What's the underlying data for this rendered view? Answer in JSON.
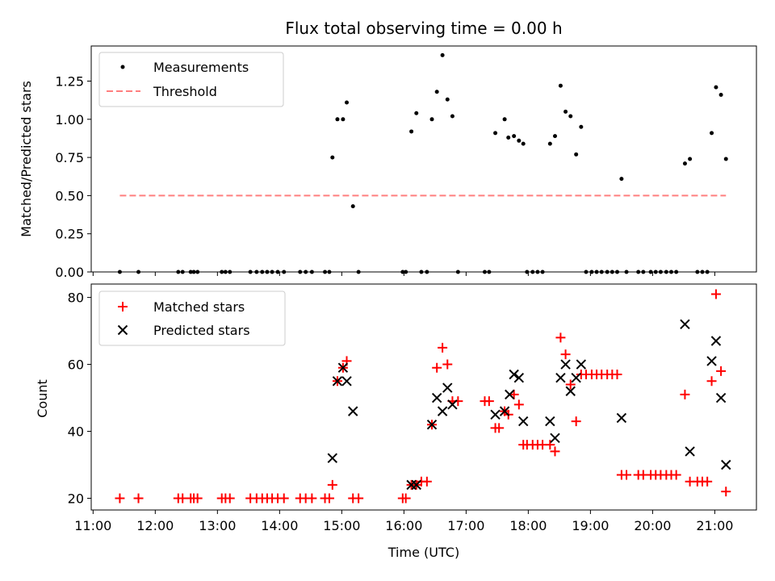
{
  "chart_data": [
    {
      "type": "scatter",
      "title": "Flux total observing time = 0.00 h",
      "xlabel": "",
      "ylabel": "Matched/Predicted stars",
      "xlim": [
        10.97,
        21.67
      ],
      "ylim": [
        0,
        1.48
      ],
      "yticks": [
        0,
        0.25,
        0.5,
        0.75,
        1.0,
        1.25
      ],
      "ytick_labels": [
        "0.00",
        "0.25",
        "0.50",
        "0.75",
        "1.00",
        "1.25"
      ],
      "legend_position": "top-left",
      "colors": {
        "measurements": "#000000",
        "threshold": "#ff7f7f"
      },
      "series": [
        {
          "name": "Measurements",
          "marker": "dot",
          "points": [
            [
              11.43,
              0
            ],
            [
              11.73,
              0
            ],
            [
              12.37,
              0
            ],
            [
              12.44,
              0
            ],
            [
              12.57,
              0
            ],
            [
              12.62,
              0
            ],
            [
              12.68,
              0
            ],
            [
              13.07,
              0
            ],
            [
              13.13,
              0
            ],
            [
              13.2,
              0
            ],
            [
              13.53,
              0
            ],
            [
              13.63,
              0
            ],
            [
              13.72,
              0
            ],
            [
              13.8,
              0
            ],
            [
              13.88,
              0
            ],
            [
              13.97,
              0
            ],
            [
              14.07,
              0
            ],
            [
              14.33,
              0
            ],
            [
              14.42,
              0
            ],
            [
              14.52,
              0
            ],
            [
              14.73,
              0
            ],
            [
              14.8,
              0
            ],
            [
              14.85,
              0.75
            ],
            [
              14.93,
              1.0
            ],
            [
              15.02,
              1.0
            ],
            [
              15.08,
              1.11
            ],
            [
              15.18,
              0.43
            ],
            [
              15.27,
              0
            ],
            [
              15.98,
              0
            ],
            [
              16.03,
              0
            ],
            [
              16.12,
              0.92
            ],
            [
              16.2,
              1.04
            ],
            [
              16.28,
              0
            ],
            [
              16.37,
              0
            ],
            [
              16.45,
              1.0
            ],
            [
              16.53,
              1.18
            ],
            [
              16.62,
              1.42
            ],
            [
              16.7,
              1.13
            ],
            [
              16.78,
              1.02
            ],
            [
              16.87,
              0
            ],
            [
              17.3,
              0
            ],
            [
              17.37,
              0
            ],
            [
              17.47,
              0.91
            ],
            [
              17.62,
              1.0
            ],
            [
              17.68,
              0.88
            ],
            [
              17.77,
              0.89
            ],
            [
              17.85,
              0.86
            ],
            [
              17.92,
              0.84
            ],
            [
              17.98,
              0
            ],
            [
              18.07,
              0
            ],
            [
              18.15,
              0
            ],
            [
              18.23,
              0
            ],
            [
              18.35,
              0.84
            ],
            [
              18.43,
              0.89
            ],
            [
              18.52,
              1.22
            ],
            [
              18.6,
              1.05
            ],
            [
              18.68,
              1.02
            ],
            [
              18.77,
              0.77
            ],
            [
              18.85,
              0.95
            ],
            [
              18.93,
              0
            ],
            [
              19.02,
              0
            ],
            [
              19.1,
              0
            ],
            [
              19.18,
              0
            ],
            [
              19.27,
              0
            ],
            [
              19.35,
              0
            ],
            [
              19.43,
              0
            ],
            [
              19.5,
              0.61
            ],
            [
              19.58,
              0
            ],
            [
              19.77,
              0
            ],
            [
              19.85,
              0
            ],
            [
              19.97,
              0
            ],
            [
              20.05,
              0
            ],
            [
              20.13,
              0
            ],
            [
              20.22,
              0
            ],
            [
              20.3,
              0
            ],
            [
              20.38,
              0
            ],
            [
              20.52,
              0.71
            ],
            [
              20.6,
              0.74
            ],
            [
              20.72,
              0
            ],
            [
              20.8,
              0
            ],
            [
              20.88,
              0
            ],
            [
              20.95,
              0.91
            ],
            [
              21.02,
              1.21
            ],
            [
              21.1,
              1.16
            ],
            [
              21.18,
              0.74
            ]
          ]
        },
        {
          "name": "Threshold",
          "style": "dashed",
          "x": [
            11.43,
            21.18
          ],
          "y": [
            0.5,
            0.5
          ]
        }
      ]
    },
    {
      "type": "scatter",
      "title": "",
      "xlabel": "Time (UTC)",
      "ylabel": "Count",
      "xlim": [
        10.97,
        21.67
      ],
      "ylim": [
        16.5,
        84
      ],
      "yticks": [
        20,
        40,
        60,
        80
      ],
      "ytick_labels": [
        "20",
        "40",
        "60",
        "80"
      ],
      "xticks": [
        11,
        12,
        13,
        14,
        15,
        16,
        17,
        18,
        19,
        20,
        21
      ],
      "xtick_labels": [
        "11:00",
        "12:00",
        "13:00",
        "14:00",
        "15:00",
        "16:00",
        "17:00",
        "18:00",
        "19:00",
        "20:00",
        "21:00"
      ],
      "legend_position": "top-left",
      "colors": {
        "matched": "#ff0000",
        "predicted": "#000000"
      },
      "series": [
        {
          "name": "Matched stars",
          "marker": "plus",
          "points": [
            [
              11.43,
              20
            ],
            [
              11.73,
              20
            ],
            [
              12.37,
              20
            ],
            [
              12.44,
              20
            ],
            [
              12.57,
              20
            ],
            [
              12.62,
              20
            ],
            [
              12.68,
              20
            ],
            [
              13.07,
              20
            ],
            [
              13.13,
              20
            ],
            [
              13.2,
              20
            ],
            [
              13.53,
              20
            ],
            [
              13.63,
              20
            ],
            [
              13.72,
              20
            ],
            [
              13.8,
              20
            ],
            [
              13.88,
              20
            ],
            [
              13.97,
              20
            ],
            [
              14.07,
              20
            ],
            [
              14.33,
              20
            ],
            [
              14.42,
              20
            ],
            [
              14.52,
              20
            ],
            [
              14.73,
              20
            ],
            [
              14.8,
              20
            ],
            [
              14.85,
              24
            ],
            [
              14.93,
              55
            ],
            [
              15.02,
              59
            ],
            [
              15.08,
              61
            ],
            [
              15.18,
              20
            ],
            [
              15.27,
              20
            ],
            [
              15.98,
              20
            ],
            [
              16.03,
              20
            ],
            [
              16.12,
              24
            ],
            [
              16.2,
              24
            ],
            [
              16.28,
              25
            ],
            [
              16.37,
              25
            ],
            [
              16.45,
              42
            ],
            [
              16.53,
              59
            ],
            [
              16.62,
              65
            ],
            [
              16.7,
              60
            ],
            [
              16.78,
              49
            ],
            [
              16.87,
              49
            ],
            [
              17.3,
              49
            ],
            [
              17.37,
              49
            ],
            [
              17.47,
              41
            ],
            [
              17.53,
              41
            ],
            [
              17.62,
              46
            ],
            [
              17.68,
              45
            ],
            [
              17.77,
              51
            ],
            [
              17.85,
              48
            ],
            [
              17.92,
              36
            ],
            [
              17.98,
              36
            ],
            [
              18.07,
              36
            ],
            [
              18.15,
              36
            ],
            [
              18.23,
              36
            ],
            [
              18.35,
              36
            ],
            [
              18.43,
              34
            ],
            [
              18.52,
              68
            ],
            [
              18.6,
              63
            ],
            [
              18.68,
              54
            ],
            [
              18.77,
              43
            ],
            [
              18.85,
              57
            ],
            [
              18.93,
              57
            ],
            [
              19.02,
              57
            ],
            [
              19.1,
              57
            ],
            [
              19.18,
              57
            ],
            [
              19.27,
              57
            ],
            [
              19.35,
              57
            ],
            [
              19.43,
              57
            ],
            [
              19.5,
              27
            ],
            [
              19.58,
              27
            ],
            [
              19.77,
              27
            ],
            [
              19.85,
              27
            ],
            [
              19.97,
              27
            ],
            [
              20.05,
              27
            ],
            [
              20.13,
              27
            ],
            [
              20.22,
              27
            ],
            [
              20.3,
              27
            ],
            [
              20.38,
              27
            ],
            [
              20.52,
              51
            ],
            [
              20.6,
              25
            ],
            [
              20.72,
              25
            ],
            [
              20.8,
              25
            ],
            [
              20.88,
              25
            ],
            [
              20.95,
              55
            ],
            [
              21.02,
              81
            ],
            [
              21.1,
              58
            ],
            [
              21.18,
              22
            ]
          ]
        },
        {
          "name": "Predicted stars",
          "marker": "x",
          "points": [
            [
              14.85,
              32
            ],
            [
              14.93,
              55
            ],
            [
              15.02,
              59
            ],
            [
              15.08,
              55
            ],
            [
              15.18,
              46
            ],
            [
              16.12,
              24
            ],
            [
              16.2,
              24
            ],
            [
              16.45,
              42
            ],
            [
              16.53,
              50
            ],
            [
              16.62,
              46
            ],
            [
              16.7,
              53
            ],
            [
              16.78,
              48
            ],
            [
              17.47,
              45
            ],
            [
              17.62,
              46
            ],
            [
              17.7,
              51
            ],
            [
              17.77,
              57
            ],
            [
              17.85,
              56
            ],
            [
              17.92,
              43
            ],
            [
              18.35,
              43
            ],
            [
              18.43,
              38
            ],
            [
              18.52,
              56
            ],
            [
              18.6,
              60
            ],
            [
              18.68,
              52
            ],
            [
              18.77,
              56
            ],
            [
              18.85,
              60
            ],
            [
              19.5,
              44
            ],
            [
              20.52,
              72
            ],
            [
              20.6,
              34
            ],
            [
              20.95,
              61
            ],
            [
              21.02,
              67
            ],
            [
              21.1,
              50
            ],
            [
              21.18,
              30
            ]
          ]
        }
      ]
    }
  ]
}
